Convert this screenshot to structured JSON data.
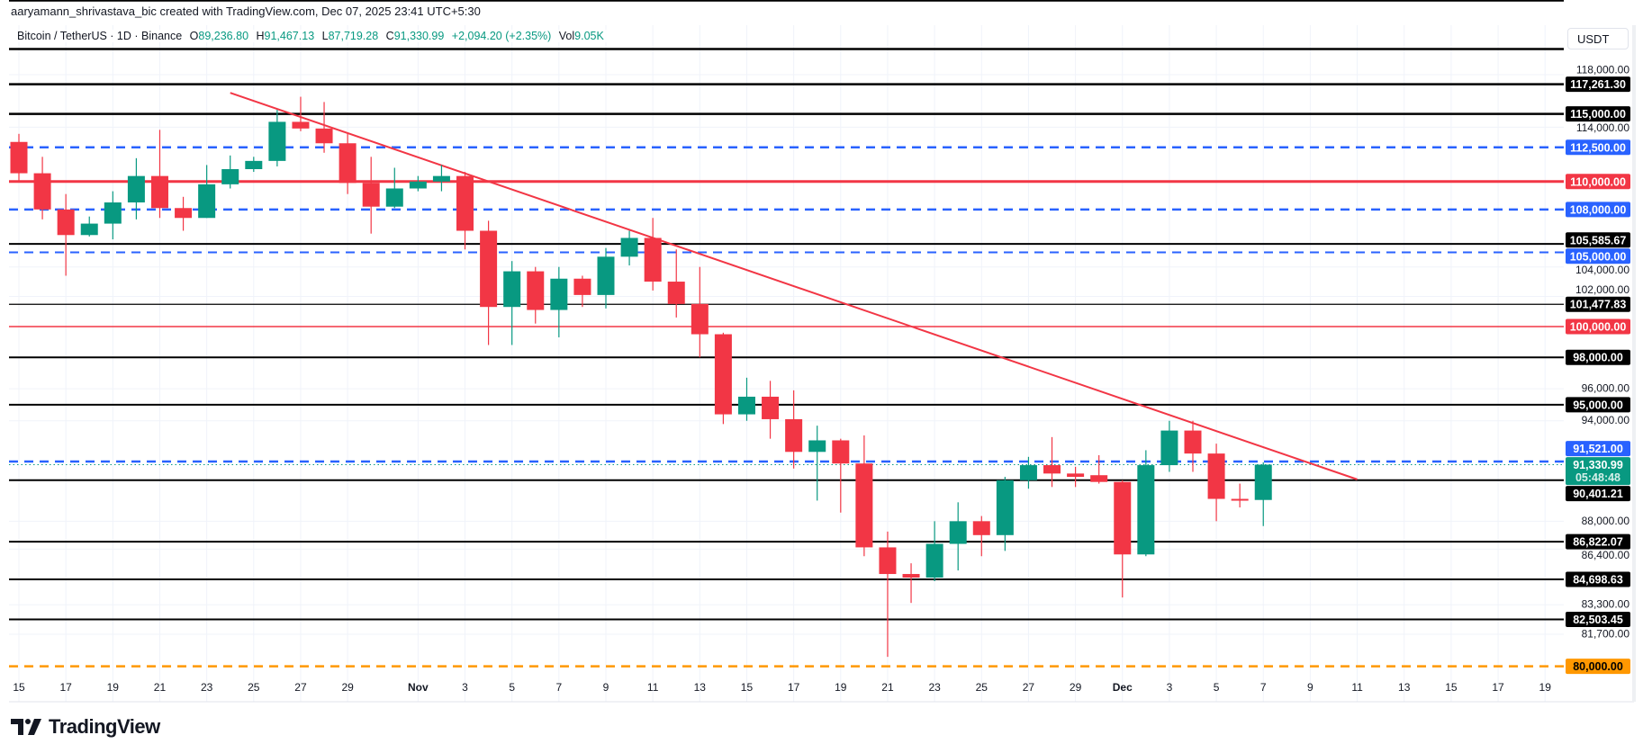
{
  "attribution": "aaryamann_shrivastava_bic created with TradingView.com, Dec 07, 2025 23:41 UTC+5:30",
  "legend": {
    "symbol": "Bitcoin / TetherUS · 1D · Binance",
    "o_key": "O",
    "o": "89,236.80",
    "h_key": "H",
    "h": "91,467.13",
    "l_key": "L",
    "l": "87,719.28",
    "c_key": "C",
    "c": "91,330.99",
    "change": "+2,094.20 (+2.35%)",
    "vol_key": "Vol",
    "vol": "9.05K"
  },
  "currency": "USDT",
  "logo": {
    "text": "TradingView",
    "icon": "tradingview-logo-icon"
  },
  "colors": {
    "up": "#089981",
    "down": "#f23645",
    "blue": "#2962ff",
    "red": "#f23645",
    "orange": "#ff9800",
    "black": "#000000",
    "grid": "#f0f3fa"
  },
  "chart_data": {
    "type": "candlestick",
    "scale": "log",
    "grid": true,
    "ylim": [
      80000,
      124000
    ],
    "xlim": [
      "2025-10-15",
      "2025-12-20"
    ],
    "candles_columns": [
      "date",
      "open",
      "high",
      "low",
      "close"
    ],
    "candles": [
      [
        "2025-10-15",
        112900,
        113500,
        110000,
        110600
      ],
      [
        "2025-10-16",
        110600,
        111800,
        107300,
        108000
      ],
      [
        "2025-10-17",
        108000,
        109100,
        103400,
        106200
      ],
      [
        "2025-10-18",
        106200,
        107500,
        106100,
        107000
      ],
      [
        "2025-10-19",
        107000,
        109300,
        105900,
        108500
      ],
      [
        "2025-10-20",
        108500,
        111700,
        107300,
        110400
      ],
      [
        "2025-10-21",
        110400,
        113800,
        107400,
        108100
      ],
      [
        "2025-10-22",
        108100,
        108900,
        106500,
        107400
      ],
      [
        "2025-10-23",
        107400,
        111200,
        107400,
        109800
      ],
      [
        "2025-10-24",
        109800,
        111900,
        109500,
        110900
      ],
      [
        "2025-10-25",
        110900,
        111800,
        110700,
        111500
      ],
      [
        "2025-10-26",
        111500,
        115300,
        111100,
        114400
      ],
      [
        "2025-10-27",
        114400,
        116300,
        113700,
        113900
      ],
      [
        "2025-10-28",
        113900,
        115900,
        112100,
        112800
      ],
      [
        "2025-10-29",
        112800,
        113600,
        109100,
        109900
      ],
      [
        "2025-10-30",
        109900,
        111800,
        106300,
        108200
      ],
      [
        "2025-10-31",
        108200,
        111000,
        108100,
        109500
      ],
      [
        "2025-11-01",
        109500,
        110400,
        109300,
        110000
      ],
      [
        "2025-11-02",
        110000,
        111200,
        109300,
        110400
      ],
      [
        "2025-11-03",
        110400,
        110700,
        105200,
        106500
      ],
      [
        "2025-11-04",
        106500,
        107200,
        98800,
        101300
      ],
      [
        "2025-11-05",
        101300,
        104400,
        98800,
        103700
      ],
      [
        "2025-11-06",
        103700,
        104000,
        100200,
        101100
      ],
      [
        "2025-11-07",
        101100,
        104000,
        99300,
        103200
      ],
      [
        "2025-11-08",
        103200,
        103400,
        101300,
        102100
      ],
      [
        "2025-11-09",
        102100,
        105300,
        101200,
        104700
      ],
      [
        "2025-11-10",
        104700,
        106500,
        104100,
        106000
      ],
      [
        "2025-11-11",
        106000,
        107400,
        102400,
        103000
      ],
      [
        "2025-11-12",
        103000,
        105200,
        100600,
        101500
      ],
      [
        "2025-11-13",
        101500,
        104000,
        98000,
        99500
      ],
      [
        "2025-11-14",
        99500,
        99600,
        93800,
        94400
      ],
      [
        "2025-11-15",
        94400,
        96700,
        94000,
        95500
      ],
      [
        "2025-11-16",
        95500,
        96500,
        92900,
        94100
      ],
      [
        "2025-11-17",
        94100,
        95900,
        91100,
        92100
      ],
      [
        "2025-11-18",
        92100,
        93700,
        89200,
        92800
      ],
      [
        "2025-11-19",
        92800,
        92900,
        88500,
        91400
      ],
      [
        "2025-11-20",
        91400,
        93100,
        86000,
        86500
      ],
      [
        "2025-11-21",
        86500,
        87400,
        80500,
        85000
      ],
      [
        "2025-11-22",
        85000,
        85600,
        83400,
        84800
      ],
      [
        "2025-11-23",
        84800,
        88000,
        84600,
        86700
      ],
      [
        "2025-11-24",
        86700,
        89100,
        85200,
        88000
      ],
      [
        "2025-11-25",
        88000,
        88300,
        86000,
        87200
      ],
      [
        "2025-11-26",
        87200,
        90600,
        86300,
        90400
      ],
      [
        "2025-11-27",
        90400,
        91800,
        89900,
        91300
      ],
      [
        "2025-11-28",
        91300,
        93000,
        90000,
        90800
      ],
      [
        "2025-11-29",
        90800,
        91200,
        90000,
        90600
      ],
      [
        "2025-11-30",
        90700,
        91900,
        90200,
        90300
      ],
      [
        "2025-12-01",
        90300,
        90400,
        83700,
        86100
      ],
      [
        "2025-12-02",
        86100,
        92200,
        86000,
        91300
      ],
      [
        "2025-12-03",
        91300,
        94000,
        90900,
        93400
      ],
      [
        "2025-12-04",
        93400,
        94000,
        90900,
        92000
      ],
      [
        "2025-12-05",
        92000,
        92600,
        88000,
        89300
      ],
      [
        "2025-12-06",
        89300,
        90200,
        88800,
        89200
      ],
      [
        "2025-12-07",
        89236.8,
        91467.13,
        87719.28,
        91330.99
      ]
    ],
    "y_ticks": [
      {
        "value": 118000,
        "label": "118,000.00"
      },
      {
        "value": 114000,
        "label": "114,000.00"
      },
      {
        "value": 104000,
        "label": "104,000.00"
      },
      {
        "value": 102000,
        "label": "102,000.00"
      },
      {
        "value": 96000,
        "label": "96,000.00"
      },
      {
        "value": 94000,
        "label": "94,000.00"
      },
      {
        "value": 88000,
        "label": "88,000.00"
      },
      {
        "value": 86400,
        "label": "86,400.00"
      },
      {
        "value": 83300,
        "label": "83,300.00"
      },
      {
        "value": 81700,
        "label": "81,700.00"
      }
    ],
    "x_ticks": [
      {
        "date": "2025-10-15",
        "label": "15"
      },
      {
        "date": "2025-10-17",
        "label": "17"
      },
      {
        "date": "2025-10-19",
        "label": "19"
      },
      {
        "date": "2025-10-21",
        "label": "21"
      },
      {
        "date": "2025-10-23",
        "label": "23"
      },
      {
        "date": "2025-10-25",
        "label": "25"
      },
      {
        "date": "2025-10-27",
        "label": "27"
      },
      {
        "date": "2025-10-29",
        "label": "29"
      },
      {
        "date": "2025-11-01",
        "label": "Nov",
        "bold": true
      },
      {
        "date": "2025-11-03",
        "label": "3"
      },
      {
        "date": "2025-11-05",
        "label": "5"
      },
      {
        "date": "2025-11-07",
        "label": "7"
      },
      {
        "date": "2025-11-09",
        "label": "9"
      },
      {
        "date": "2025-11-11",
        "label": "11"
      },
      {
        "date": "2025-11-13",
        "label": "13"
      },
      {
        "date": "2025-11-15",
        "label": "15"
      },
      {
        "date": "2025-11-17",
        "label": "17"
      },
      {
        "date": "2025-11-19",
        "label": "19"
      },
      {
        "date": "2025-11-21",
        "label": "21"
      },
      {
        "date": "2025-11-23",
        "label": "23"
      },
      {
        "date": "2025-11-25",
        "label": "25"
      },
      {
        "date": "2025-11-27",
        "label": "27"
      },
      {
        "date": "2025-11-29",
        "label": "29"
      },
      {
        "date": "2025-12-01",
        "label": "Dec",
        "bold": true
      },
      {
        "date": "2025-12-03",
        "label": "3"
      },
      {
        "date": "2025-12-05",
        "label": "5"
      },
      {
        "date": "2025-12-07",
        "label": "7"
      },
      {
        "date": "2025-12-09",
        "label": "9"
      },
      {
        "date": "2025-12-11",
        "label": "11"
      },
      {
        "date": "2025-12-13",
        "label": "13"
      },
      {
        "date": "2025-12-15",
        "label": "15"
      },
      {
        "date": "2025-12-17",
        "label": "17"
      },
      {
        "date": "2025-12-19",
        "label": "19"
      }
    ],
    "levels": [
      {
        "price": 123900,
        "style": "solid",
        "color": "#000000",
        "width": 2.5
      },
      {
        "price": 120000,
        "style": "solid",
        "color": "#000000",
        "width": 2.5
      },
      {
        "price": 117261.3,
        "label": "117,261.30",
        "style": "solid",
        "color": "#000000",
        "width": 2.5
      },
      {
        "price": 115000,
        "label": "115,000.00",
        "style": "solid",
        "color": "#000000",
        "width": 2.5
      },
      {
        "price": 112500,
        "label": "112,500.00",
        "style": "dashed",
        "color": "#2962ff",
        "width": 2.5
      },
      {
        "price": 110000,
        "label": "110,000.00",
        "style": "solid",
        "color": "#f23645",
        "width": 3
      },
      {
        "price": 108000,
        "label": "108,000.00",
        "style": "dashed",
        "color": "#2962ff",
        "width": 2.5
      },
      {
        "price": 105585.67,
        "label": "105,585.67",
        "style": "solid",
        "color": "#000000",
        "width": 2
      },
      {
        "price": 105000,
        "label": "105,000.00",
        "style": "dashed",
        "color": "#2962ff",
        "width": 2
      },
      {
        "price": 101477.83,
        "label": "101,477.83",
        "style": "solid",
        "color": "#000000",
        "width": 1.3
      },
      {
        "price": 100000,
        "label": "100,000.00",
        "style": "solid",
        "color": "#f23645",
        "width": 1.5
      },
      {
        "price": 98000,
        "label": "98,000.00",
        "style": "solid",
        "color": "#000000",
        "width": 2
      },
      {
        "price": 95000,
        "label": "95,000.00",
        "style": "solid",
        "color": "#000000",
        "width": 2
      },
      {
        "price": 91521.0,
        "label": "91,521.00",
        "style": "dashed",
        "color": "#2962ff",
        "width": 2.5
      },
      {
        "price": 90401.21,
        "label": "90,401.21",
        "style": "solid",
        "color": "#000000",
        "width": 2
      },
      {
        "price": 86822.07,
        "label": "86,822.07",
        "style": "solid",
        "color": "#000000",
        "width": 2
      },
      {
        "price": 84698.63,
        "label": "84,698.63",
        "style": "solid",
        "color": "#000000",
        "width": 2
      },
      {
        "price": 82503.45,
        "label": "82,503.45",
        "style": "solid",
        "color": "#000000",
        "width": 2
      },
      {
        "price": 80000,
        "label": "80,000.00",
        "style": "dashed",
        "color": "#ff9800",
        "width": 2.5,
        "text_color": "#000000"
      }
    ],
    "current_price": {
      "price": 91330.99,
      "label": "91,330.99",
      "countdown": "05:48:48",
      "color": "#089981"
    },
    "trendline": {
      "color": "#f23645",
      "start": {
        "date": "2025-10-24",
        "price": 116600
      },
      "end": {
        "date": "2025-12-11",
        "price": 90450
      }
    }
  }
}
